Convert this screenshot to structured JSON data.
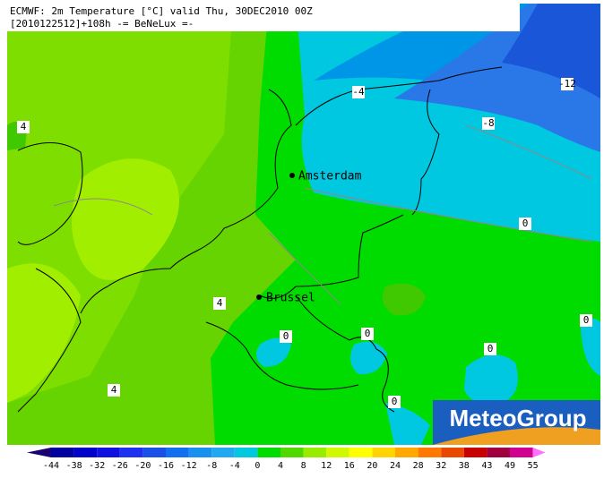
{
  "header": {
    "line1": "ECMWF: 2m Temperature [°C] valid Thu, 30DEC2010 00Z",
    "line2": "[2010122512]+108h -= BeNeLux =-"
  },
  "cities": [
    "Amsterdam",
    "Brussel"
  ],
  "contour_labels": [
    4,
    -4,
    -12,
    -8,
    0,
    4,
    0,
    0,
    0,
    0,
    4,
    0
  ],
  "colorbar": {
    "ticks": [
      -44,
      -38,
      -32,
      -26,
      -20,
      -16,
      -12,
      -8,
      -4,
      0,
      4,
      8,
      12,
      16,
      20,
      24,
      28,
      32,
      38,
      43,
      49,
      55
    ],
    "colors": [
      "#1a0070",
      "#0000a0",
      "#0000c8",
      "#1010e0",
      "#2030f0",
      "#1850e8",
      "#1070f0",
      "#1890f0",
      "#20a8f0",
      "#00c8e0",
      "#00dc00",
      "#50d800",
      "#98ec00",
      "#d0f800",
      "#ffff00",
      "#ffd400",
      "#ffa800",
      "#ff7800",
      "#e84800",
      "#c80000",
      "#a00040",
      "#d00090",
      "#ff70ff"
    ]
  },
  "logo": "MeteoGroup"
}
